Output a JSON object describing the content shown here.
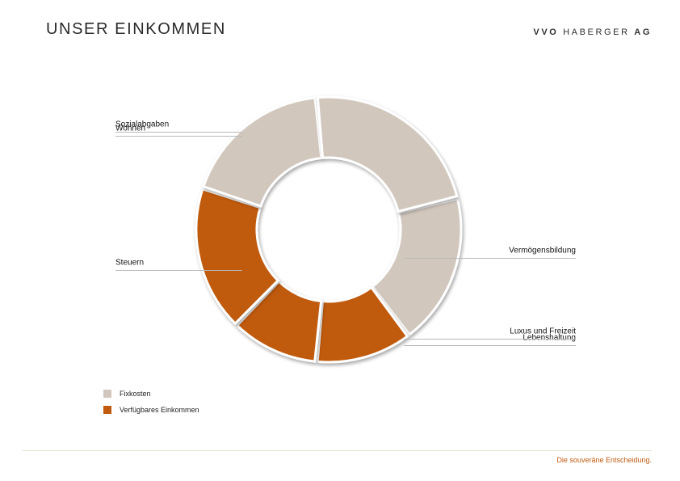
{
  "header": {
    "title": "UNSER EINKOMMEN",
    "brand_prefix": "VVO",
    "brand_middle": "HABERGER",
    "brand_suffix": "AG"
  },
  "colors": {
    "fixkosten": "#d1c7bd",
    "verfuegbar": "#c05a0f",
    "leader_line": "#b9b9b9",
    "tagline": "#c05a0f"
  },
  "chart_data": {
    "type": "donut",
    "title": "",
    "slices": [
      {
        "label": "Steuern",
        "value": 18.6,
        "group": "fixkosten",
        "side": "left"
      },
      {
        "label": "Lebenshaltung",
        "value": 11.8,
        "group": "verfuegbar",
        "side": "right"
      },
      {
        "label": "Luxus und Freizeit",
        "value": 10.8,
        "group": "verfuegbar",
        "side": "right"
      },
      {
        "label": "Vermögensbildung",
        "value": 17.8,
        "group": "verfuegbar",
        "side": "right"
      },
      {
        "label": "Wohnen",
        "value": 18.4,
        "group": "fixkosten",
        "side": "left"
      },
      {
        "label": "Sozialabgaben",
        "value": 22.6,
        "group": "fixkosten",
        "side": "left"
      }
    ],
    "legend": {
      "position": "bottom-left",
      "items": [
        {
          "label": "Fixkosten",
          "group": "fixkosten"
        },
        {
          "label": "Verfügbares Einkommen",
          "group": "verfuegbar"
        }
      ]
    }
  },
  "footer": {
    "tagline": "Die souveräne Entscheidung."
  }
}
